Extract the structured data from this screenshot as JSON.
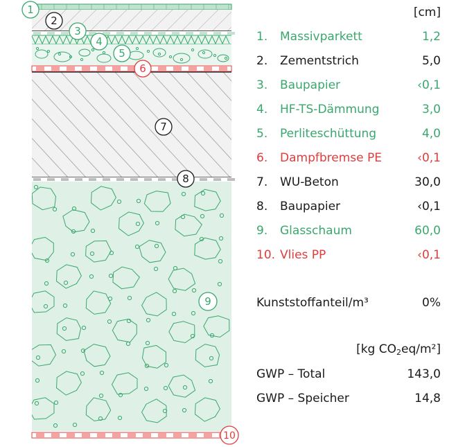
{
  "unit_thickness": "[cm]",
  "layers": [
    {
      "num": "1.",
      "name": "Massivparkett",
      "value": "1,2",
      "color": "#3aa76d"
    },
    {
      "num": "2.",
      "name": "Zementstrich",
      "value": "5,0",
      "color": "#1a1a1a"
    },
    {
      "num": "3.",
      "name": "Baupapier",
      "value": "‹0,1",
      "color": "#3aa76d"
    },
    {
      "num": "4.",
      "name": "HF-TS-Dämmung",
      "value": "3,0",
      "color": "#3aa76d"
    },
    {
      "num": "5.",
      "name": "Perliteschüttung",
      "value": "4,0",
      "color": "#3aa76d"
    },
    {
      "num": "6.",
      "name": "Dampfbremse PE",
      "value": "‹0,1",
      "color": "#e03c3c"
    },
    {
      "num": "7.",
      "name": "WU-Beton",
      "value": "30,0",
      "color": "#1a1a1a"
    },
    {
      "num": "8.",
      "name": "Baupapier",
      "value": "‹0,1",
      "color": "#1a1a1a"
    },
    {
      "num": "9.",
      "name": "Glasschaum",
      "value": "60,0",
      "color": "#3aa76d"
    },
    {
      "num": "10.",
      "name": "Vlies PP",
      "value": "‹0,1",
      "color": "#e03c3c"
    }
  ],
  "plastic": {
    "label": "Kunststoffanteil/m³",
    "value": "0%"
  },
  "unit_gwp": {
    "prefix": "[kg CO",
    "sub": "2",
    "suffix": "eq/m²]"
  },
  "gwp": [
    {
      "label": "GWP – Total",
      "value": "143,0"
    },
    {
      "label": "GWP – Speicher",
      "value": "14,8"
    }
  ],
  "markers": [
    "1",
    "2",
    "3",
    "4",
    "5",
    "6",
    "7",
    "8",
    "9",
    "10"
  ],
  "colors": {
    "green": "#3aa76d",
    "red": "#e03c3c",
    "black": "#1a1a1a",
    "green_fill": "#dff1e6",
    "gray_fill": "#efefef"
  }
}
